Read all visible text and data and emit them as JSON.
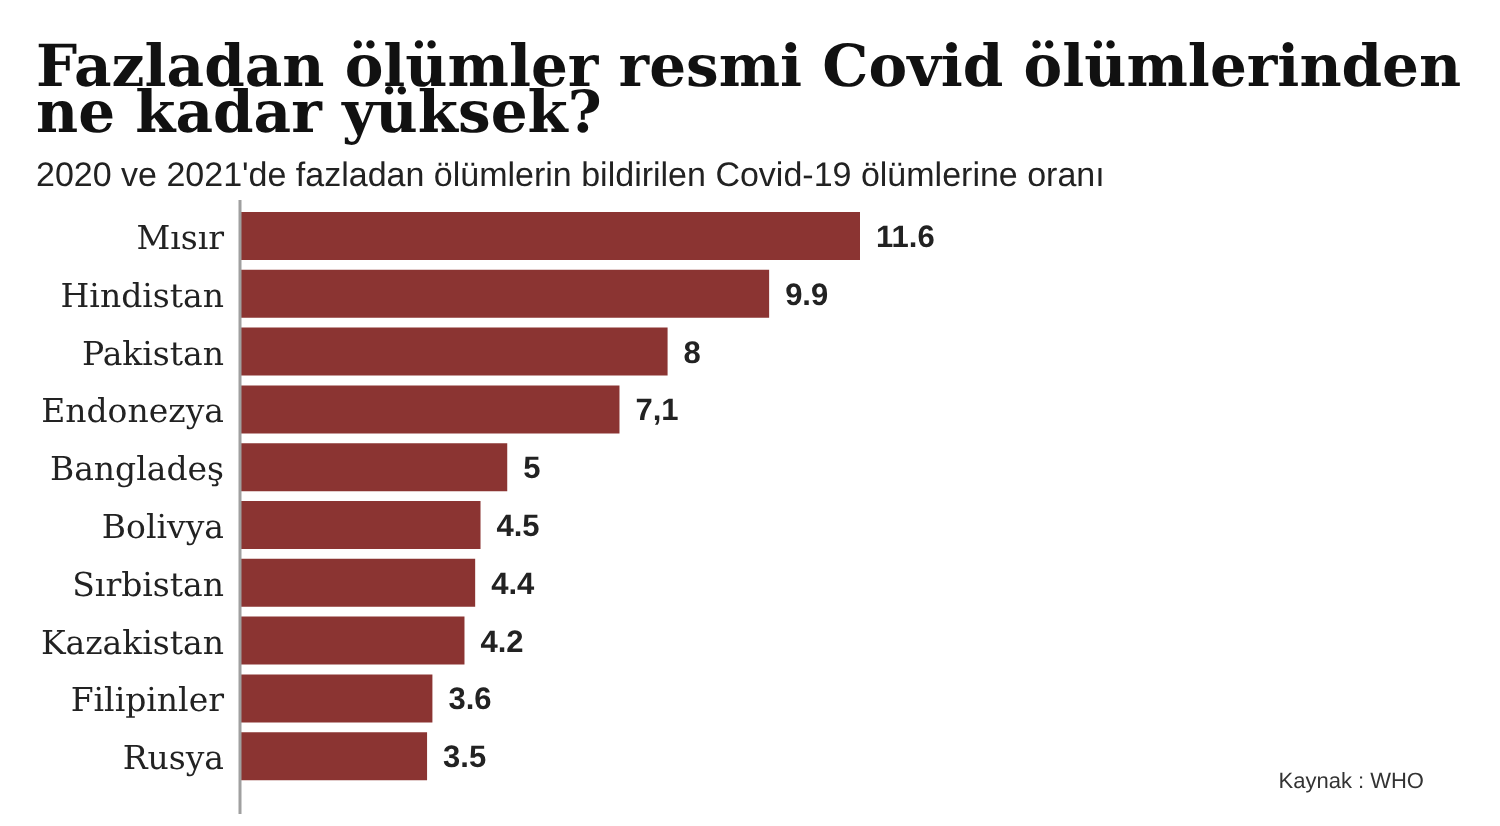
{
  "chart_data": {
    "type": "bar",
    "orientation": "horizontal",
    "title": "Fazladan ölümler resmi Covid ölümlerinden ne kadar yüksek?",
    "subtitle": "2020 ve 2021'de fazladan ölümlerin bildirilen Covid-19 ölümlerine oranı",
    "categories": [
      "Mısır",
      "Hindistan",
      "Pakistan",
      "Endonezya",
      "Bangladeş",
      "Bolivya",
      "Sırbistan",
      "Kazakistan",
      "Filipinler",
      "Rusya"
    ],
    "values": [
      11.6,
      9.9,
      8,
      7.1,
      5,
      4.5,
      4.4,
      4.2,
      3.6,
      3.5
    ],
    "value_labels": [
      "11.6",
      "9.9",
      "8",
      "7,1",
      "5",
      "4.5",
      "4.4",
      "4.2",
      "3.6",
      "3.5"
    ],
    "color": "#8b3432",
    "tick_labels": "y",
    "annotations": [
      "Kaynak : WHO"
    ]
  }
}
